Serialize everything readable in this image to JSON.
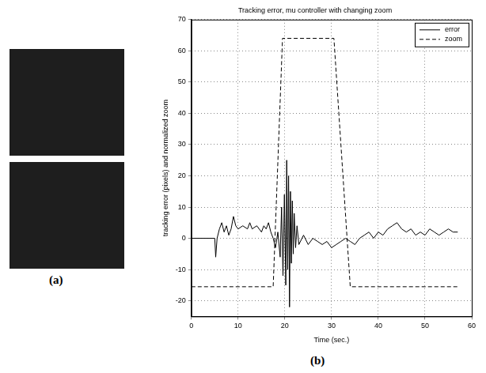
{
  "chart_data": {
    "type": "line",
    "title": "Tracking error, mu controller with changing zoom",
    "x_label": "Time (sec.)",
    "y_label": "tracking error (pixels) and normalized zoom",
    "xlim": [
      0,
      60
    ],
    "xticks": [
      0,
      10,
      20,
      30,
      40,
      50,
      60
    ],
    "ylim": [
      -25,
      70
    ],
    "yticks": [
      -20,
      -10,
      0,
      10,
      20,
      30,
      40,
      50,
      60,
      70
    ],
    "grid": true,
    "legend": "upper right",
    "series": [
      {
        "name": "error",
        "color": "#000000",
        "line_style": "solid",
        "x": [
          0,
          5,
          5.2,
          5.5,
          6,
          6.5,
          7,
          7.5,
          8,
          8.5,
          9,
          9.5,
          10,
          11,
          12,
          12.5,
          13,
          14,
          15,
          15.5,
          16,
          16.5,
          17,
          17.5,
          18,
          18.5,
          19,
          19.3,
          19.6,
          19.9,
          20.2,
          20.4,
          20.6,
          20.8,
          21,
          21.2,
          21.4,
          21.6,
          21.8,
          22,
          22.3,
          22.6,
          23,
          24,
          25,
          26,
          27,
          28,
          29,
          30,
          31,
          32,
          33,
          34,
          35,
          36,
          37,
          38,
          39,
          40,
          41,
          42,
          43,
          44,
          45,
          46,
          47,
          48,
          49,
          50,
          51,
          52,
          53,
          54,
          55,
          56,
          57
        ],
        "values": [
          0,
          0,
          -6,
          0,
          3,
          5,
          2,
          4,
          1,
          3,
          7,
          4,
          3,
          4,
          3,
          5,
          3,
          4,
          2,
          4,
          3,
          5,
          2,
          0,
          -3,
          2,
          -6,
          10,
          -12,
          14,
          -15,
          25,
          -10,
          20,
          -22,
          15,
          -8,
          12,
          -5,
          8,
          -3,
          4,
          -2,
          1,
          -2,
          0,
          -1,
          -2,
          -1,
          -3,
          -2,
          -1,
          0,
          -1,
          -2,
          0,
          1,
          2,
          0,
          2,
          1,
          3,
          4,
          5,
          3,
          2,
          3,
          1,
          2,
          1,
          3,
          2,
          1,
          2,
          3,
          2,
          2
        ]
      },
      {
        "name": "zoom",
        "color": "#000000",
        "line_style": "dashed",
        "x": [
          0,
          17.5,
          19.5,
          30.5,
          34,
          57
        ],
        "values": [
          -15.5,
          -15.5,
          64,
          64,
          -15.5,
          -15.5
        ]
      }
    ]
  },
  "panel_labels": [
    "(a)",
    "(b)"
  ]
}
